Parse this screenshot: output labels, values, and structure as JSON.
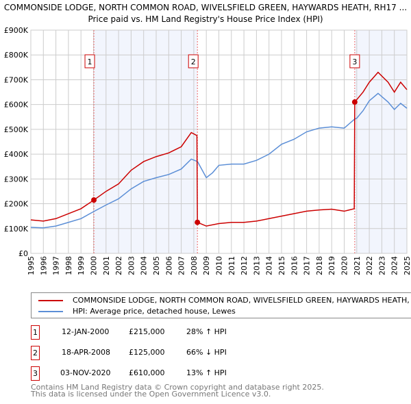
{
  "chart_data": {
    "type": "line",
    "title": "COMMONSIDE LODGE, NORTH COMMON ROAD, WIVELSFIELD GREEN, HAYWARDS HEATH, RH17 ...",
    "subtitle": "Price paid vs. HM Land Registry's House Price Index (HPI)",
    "xlim": [
      1995,
      2025
    ],
    "ylim": [
      0,
      900000
    ],
    "y_ticks": [
      0,
      100000,
      200000,
      300000,
      400000,
      500000,
      600000,
      700000,
      800000,
      900000
    ],
    "y_tick_labels": [
      "£0",
      "£100K",
      "£200K",
      "£300K",
      "£400K",
      "£500K",
      "£600K",
      "£700K",
      "£800K",
      "£900K"
    ],
    "x_ticks": [
      "1995",
      "1996",
      "1997",
      "1998",
      "1999",
      "2000",
      "2001",
      "2002",
      "2003",
      "2004",
      "2005",
      "2006",
      "2007",
      "2008",
      "2009",
      "2010",
      "2011",
      "2012",
      "2013",
      "2014",
      "2015",
      "2016",
      "2017",
      "2018",
      "2019",
      "2020",
      "2021",
      "2022",
      "2023",
      "2024",
      "2025"
    ],
    "grid": true,
    "series": [
      {
        "name": "COMMONSIDE LODGE, NORTH COMMON ROAD, WIVELSFIELD GREEN, HAYWARDS HEATH, RH17 ...",
        "color": "#cc0000",
        "x": [
          1995,
          1996,
          1997,
          1998,
          1999,
          2000.03,
          2001,
          2002,
          2003,
          2004,
          2005,
          2006,
          2007,
          2007.8,
          2008.25,
          2008.29,
          2009,
          2010,
          2011,
          2012,
          2013,
          2014,
          2015,
          2016,
          2017,
          2018,
          2019,
          2020,
          2020.8,
          2020.84,
          2021.5,
          2022,
          2022.7,
          2023.5,
          2024,
          2024.5,
          2025
        ],
        "y": [
          135000,
          130000,
          140000,
          160000,
          180000,
          215000,
          250000,
          280000,
          335000,
          370000,
          390000,
          405000,
          430000,
          487000,
          475000,
          125000,
          110000,
          120000,
          125000,
          125000,
          130000,
          140000,
          150000,
          160000,
          170000,
          175000,
          178000,
          170000,
          180000,
          610000,
          650000,
          690000,
          730000,
          690000,
          650000,
          690000,
          660000
        ]
      },
      {
        "name": "HPI: Average price, detached house, Lewes",
        "color": "#5b8ed6",
        "x": [
          1995,
          1996,
          1997,
          1998,
          1999,
          2000,
          2001,
          2002,
          2003,
          2004,
          2005,
          2006,
          2007,
          2007.8,
          2008.3,
          2009,
          2009.5,
          2010,
          2011,
          2012,
          2013,
          2014,
          2015,
          2016,
          2017,
          2018,
          2019,
          2020,
          2020.8,
          2021,
          2021.5,
          2022,
          2022.7,
          2023.5,
          2024,
          2024.5,
          2025
        ],
        "y": [
          105000,
          103000,
          110000,
          125000,
          140000,
          168000,
          195000,
          220000,
          260000,
          290000,
          305000,
          318000,
          340000,
          380000,
          370000,
          305000,
          325000,
          355000,
          360000,
          360000,
          375000,
          400000,
          440000,
          460000,
          490000,
          505000,
          510000,
          505000,
          540000,
          545000,
          575000,
          615000,
          645000,
          610000,
          580000,
          605000,
          585000
        ]
      }
    ],
    "sales": [
      {
        "label": "1",
        "x": 2000.03,
        "y": 215000,
        "date": "12-JAN-2000",
        "price": "£215,000",
        "hpi": "28% ↑ HPI"
      },
      {
        "label": "2",
        "x": 2008.29,
        "y": 125000,
        "date": "18-APR-2008",
        "price": "£125,000",
        "hpi": "66% ↓ HPI"
      },
      {
        "label": "3",
        "x": 2020.84,
        "y": 610000,
        "date": "03-NOV-2020",
        "price": "£610,000",
        "hpi": "13% ↑ HPI"
      }
    ],
    "shaded_ranges": [
      [
        2000.03,
        2008.29
      ],
      [
        2020.84,
        2025
      ]
    ]
  },
  "footer": {
    "line1": "Contains HM Land Registry data © Crown copyright and database right 2025.",
    "line2": "This data is licensed under the Open Government Licence v3.0."
  }
}
